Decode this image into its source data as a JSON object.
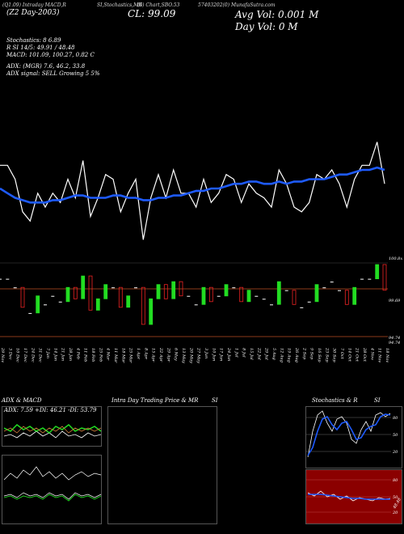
{
  "header": {
    "top_line": [
      "(Q1.09) Intraday MACD,R",
      "SI,Stochastics,MR",
      "(6) Chart,SBO.53",
      "57403202(0) MunafaSutra.com"
    ],
    "left_line": "(Z2 Day-2003)",
    "cl_text": "CL: 99.09",
    "avg_vol": "Avg Vol: 0.001 M",
    "day_vol": "Day Vol: 0   M"
  },
  "indicators": {
    "stochastics": "Stochastics: 8        6.89",
    "rsi": "R            SI 14/5: 49.91 / 48.48",
    "macd": "MACD: 101.09,  100.27,  0.82  C",
    "adx": "ADX:                        (MGR) 7.6,  46.2,  33.8",
    "adx_signal": "ADX signal: SELL Growing 5 5%"
  },
  "price_levels": [
    "100.8x",
    "99.69",
    "94.74",
    "94.74"
  ],
  "dates": [
    "29 Nov",
    "3 Dec",
    "10 Dec",
    "17 Dec",
    "24 Dec",
    "31 Dec",
    "7 Jan",
    "14 Jan",
    "21 Jan",
    "28 Jan",
    "4 Feb",
    "11 Feb",
    "18 Feb",
    "25 Feb",
    "4 Mar",
    "11 Mar",
    "18 Mar",
    "25 Mar",
    "1 Apr",
    "8 Apr",
    "15 Apr",
    "22 Apr",
    "29 Apr",
    "6 May",
    "13 May",
    "20 May",
    "27 May",
    "3 Jun",
    "10 Jun",
    "17 Jun",
    "24 Jun",
    "1 Jul",
    "8 Jul",
    "15 Jul",
    "22 Jul",
    "29 Jul",
    "5 Aug",
    "12 Aug",
    "19 Aug",
    "26 Aug",
    "2 Sep",
    "9 Sep",
    "16 Sep",
    "23 Sep",
    "30 Sep",
    "7 Oct",
    "14 Oct",
    "21 Oct",
    "28 Oct",
    "4 Nov",
    "11 Nov",
    "18 Nov"
  ],
  "panels": {
    "adx_title": "ADX  & MACD",
    "adx_values": "ADX: 7.59  +DI: 46.21  -DI: 53.79",
    "intraday_title": "Intra  Day Trading Price  & MR",
    "intraday_si": "SI",
    "stoch_title": "Stochastics & R",
    "stoch_si": "SI",
    "stoch_ticks": [
      "80",
      "50",
      "20"
    ],
    "rsi_ticks": [
      "80",
      "50",
      "20"
    ],
    "rsi_value": "48.48"
  },
  "colors": {
    "background": "#000000",
    "price_line": "#ffffff",
    "ma_line": "#1e5bff",
    "bull_candle": "#22dd22",
    "bear_candle": "#ee2222",
    "level_line": "#8b3a1a",
    "rsi_panel": "#8b0000"
  },
  "chart_data": {
    "type": "line",
    "x": [
      "29 Nov",
      "3 Dec",
      "10 Dec",
      "17 Dec",
      "24 Dec",
      "31 Dec",
      "7 Jan",
      "14 Jan",
      "21 Jan",
      "28 Jan",
      "4 Feb",
      "11 Feb",
      "18 Feb",
      "25 Feb",
      "4 Mar",
      "11 Mar",
      "18 Mar",
      "25 Mar",
      "1 Apr",
      "8 Apr",
      "15 Apr",
      "22 Apr",
      "29 Apr",
      "6 May",
      "13 May",
      "20 May",
      "27 May",
      "3 Jun",
      "10 Jun",
      "17 Jun",
      "24 Jun",
      "1 Jul",
      "8 Jul",
      "15 Jul",
      "22 Jul",
      "29 Jul",
      "5 Aug",
      "12 Aug",
      "19 Aug",
      "26 Aug",
      "2 Sep",
      "9 Sep",
      "16 Sep",
      "23 Sep",
      "30 Sep",
      "7 Oct",
      "14 Oct",
      "21 Oct",
      "28 Oct",
      "4 Nov",
      "11 Nov",
      "18 Nov"
    ],
    "series": [
      {
        "values": [
          99.6,
          99.6,
          99.3,
          98.6,
          98.4,
          99.0,
          98.7,
          99.0,
          98.8,
          99.3,
          98.9,
          99.7,
          98.5,
          98.9,
          99.4,
          99.3,
          98.6,
          99.0,
          99.3,
          98.0,
          98.9,
          99.4,
          98.9,
          99.5,
          99.0,
          99.0,
          98.7,
          99.3,
          98.8,
          99.0,
          99.4,
          99.3,
          98.8,
          99.2,
          99.0,
          98.9,
          98.7,
          99.5,
          99.2,
          98.7,
          98.6,
          98.8,
          99.4,
          99.3,
          99.5,
          99.2,
          98.7,
          99.3,
          99.6,
          99.6,
          100.1,
          99.2
        ]
      },
      {
        "values": [
          99.1,
          99.0,
          98.9,
          98.85,
          98.8,
          98.8,
          98.8,
          98.85,
          98.85,
          98.9,
          98.95,
          98.95,
          98.9,
          98.9,
          98.9,
          98.95,
          98.95,
          98.9,
          98.9,
          98.85,
          98.85,
          98.9,
          98.9,
          98.95,
          98.95,
          99.0,
          99.05,
          99.05,
          99.1,
          99.1,
          99.15,
          99.2,
          99.2,
          99.25,
          99.25,
          99.2,
          99.2,
          99.25,
          99.2,
          99.25,
          99.25,
          99.3,
          99.3,
          99.3,
          99.35,
          99.4,
          99.4,
          99.45,
          99.5,
          99.5,
          99.55,
          99.5
        ]
      }
    ],
    "ylim": [
      97.5,
      101.5
    ]
  }
}
